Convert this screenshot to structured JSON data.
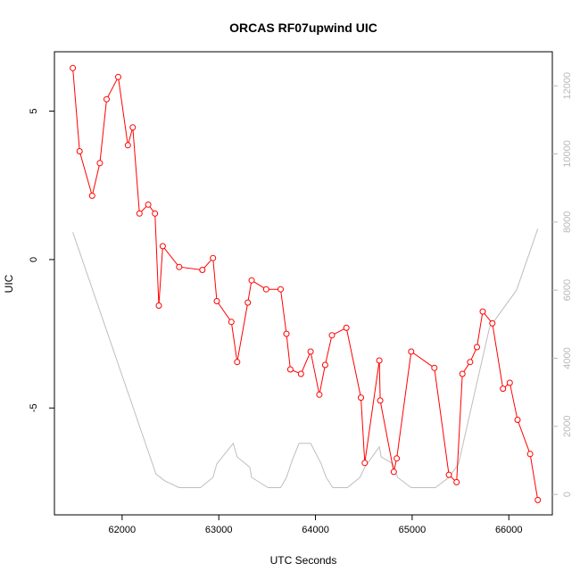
{
  "chart_data": {
    "type": "line",
    "title": "ORCAS RF07upwind UIC",
    "xlabel": "UTC Seconds",
    "ylabel": "UIC",
    "xlim": [
      61300,
      66450
    ],
    "ylim": [
      -8.6,
      7.0
    ],
    "y2lim": [
      -600,
      13000
    ],
    "x_ticks": [
      62000,
      63000,
      64000,
      65000,
      66000
    ],
    "x_tick_labels": [
      "62000",
      "63000",
      "64000",
      "65000",
      "66000"
    ],
    "y_ticks": [
      -5,
      0,
      5
    ],
    "y_tick_labels": [
      "-5",
      "0",
      "5"
    ],
    "y2_ticks": [
      0,
      2000,
      4000,
      6000,
      8000,
      10000,
      12000
    ],
    "y2_tick_labels": [
      "0",
      "2000",
      "4000",
      "6000",
      "8000",
      "10000",
      "12000"
    ],
    "grid": false,
    "colors": {
      "uic": "#ff0000",
      "altitude": "#bebebe",
      "axis": "#000000",
      "right_axis": "#b8b8b8"
    },
    "series": [
      {
        "axis": "left",
        "style": "line+markers",
        "points": [
          [
            61490,
            6.45
          ],
          [
            61560,
            3.65
          ],
          [
            61690,
            2.15
          ],
          [
            61770,
            3.25
          ],
          [
            61840,
            5.4
          ],
          [
            61960,
            6.15
          ],
          [
            62060,
            3.85
          ],
          [
            62110,
            4.45
          ],
          [
            62180,
            1.55
          ],
          [
            62270,
            1.85
          ],
          [
            62340,
            1.55
          ],
          [
            62380,
            -1.55
          ],
          [
            62420,
            0.45
          ],
          [
            62590,
            -0.25
          ],
          [
            62830,
            -0.35
          ],
          [
            62940,
            0.05
          ],
          [
            62980,
            -1.4
          ],
          [
            63130,
            -2.1
          ],
          [
            63190,
            -3.45
          ],
          [
            63300,
            -1.45
          ],
          [
            63340,
            -0.7
          ],
          [
            63490,
            -1.0
          ],
          [
            63640,
            -1.0
          ],
          [
            63700,
            -2.5
          ],
          [
            63740,
            -3.7
          ],
          [
            63850,
            -3.85
          ],
          [
            63950,
            -3.1
          ],
          [
            64040,
            -4.55
          ],
          [
            64100,
            -3.55
          ],
          [
            64170,
            -2.55
          ],
          [
            64320,
            -2.3
          ],
          [
            64470,
            -4.65
          ],
          [
            64510,
            -6.85
          ],
          [
            64660,
            -3.4
          ],
          [
            64670,
            -4.75
          ],
          [
            64810,
            -7.15
          ],
          [
            64840,
            -6.7
          ],
          [
            64990,
            -3.1
          ],
          [
            65230,
            -3.65
          ],
          [
            65380,
            -7.25
          ],
          [
            65460,
            -7.5
          ],
          [
            65520,
            -3.85
          ],
          [
            65600,
            -3.45
          ],
          [
            65670,
            -2.95
          ],
          [
            65730,
            -1.75
          ],
          [
            65830,
            -2.15
          ],
          [
            65940,
            -4.35
          ],
          [
            66010,
            -4.15
          ],
          [
            66090,
            -5.4
          ],
          [
            66220,
            -6.55
          ],
          [
            66300,
            -8.1
          ]
        ]
      },
      {
        "axis": "right",
        "style": "line",
        "points": [
          [
            61490,
            7700
          ],
          [
            62350,
            600
          ],
          [
            62440,
            400
          ],
          [
            62590,
            200
          ],
          [
            62810,
            200
          ],
          [
            62940,
            500
          ],
          [
            62980,
            900
          ],
          [
            63150,
            1500
          ],
          [
            63190,
            1100
          ],
          [
            63320,
            800
          ],
          [
            63340,
            500
          ],
          [
            63510,
            200
          ],
          [
            63640,
            200
          ],
          [
            63700,
            500
          ],
          [
            63760,
            1000
          ],
          [
            63830,
            1500
          ],
          [
            63950,
            1500
          ],
          [
            64060,
            900
          ],
          [
            64110,
            500
          ],
          [
            64180,
            200
          ],
          [
            64330,
            200
          ],
          [
            64460,
            500
          ],
          [
            64510,
            800
          ],
          [
            64660,
            1400
          ],
          [
            64680,
            1100
          ],
          [
            64800,
            900
          ],
          [
            64850,
            500
          ],
          [
            64990,
            200
          ],
          [
            65240,
            200
          ],
          [
            65380,
            500
          ],
          [
            65480,
            900
          ],
          [
            65640,
            2900
          ],
          [
            65800,
            4900
          ],
          [
            66080,
            6000
          ],
          [
            66300,
            7800
          ]
        ]
      }
    ]
  }
}
